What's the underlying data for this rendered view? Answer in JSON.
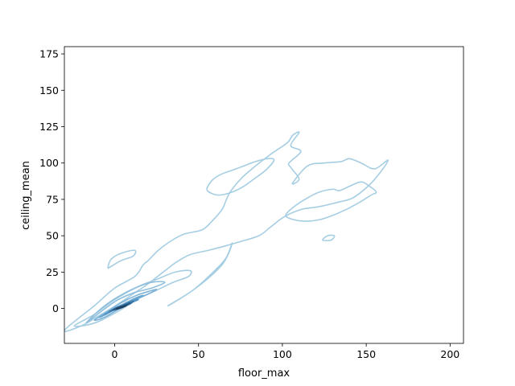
{
  "chart_data": {
    "type": "contour",
    "title": "",
    "xlabel": "floor_max",
    "ylabel": "ceiling_mean",
    "xlim": [
      -30,
      208
    ],
    "ylim": [
      -24,
      180
    ],
    "xticks": [
      0,
      50,
      100,
      150,
      200
    ],
    "yticks": [
      0,
      25,
      50,
      75,
      100,
      125,
      150,
      175
    ],
    "grid": false,
    "legend": "none",
    "colormap": "Blues",
    "colors": {
      "level_light": "#a6cee3",
      "level_mid": "#6aa7cf",
      "level_dark": "#3b78aa",
      "level_darkest": "#1f3f5f"
    },
    "contours": [
      {
        "level": 1,
        "color": "#a6cee3",
        "paths": [
          [
            [
              -30,
              -15
            ],
            [
              -12,
              2
            ],
            [
              0,
              14
            ],
            [
              12,
              22
            ],
            [
              17,
              30
            ],
            [
              20,
              33
            ],
            [
              26,
              40
            ],
            [
              33,
              46
            ],
            [
              41,
              51
            ],
            [
              52,
              54
            ],
            [
              58,
              60
            ],
            [
              64,
              68
            ],
            [
              67,
              76
            ],
            [
              70,
              82
            ],
            [
              76,
              90
            ],
            [
              84,
              98
            ],
            [
              93,
              106
            ],
            [
              103,
              114
            ],
            [
              106,
              119
            ],
            [
              110,
              121
            ],
            [
              105,
              112
            ],
            [
              111,
              108
            ],
            [
              104,
              100
            ],
            [
              105,
              97
            ],
            [
              110,
              89
            ],
            [
              106,
              86
            ],
            [
              115,
              98
            ],
            [
              125,
              100
            ],
            [
              135,
              101
            ],
            [
              140,
              103
            ],
            [
              147,
              100
            ],
            [
              155,
              96
            ],
            [
              163,
              102
            ],
            [
              158,
              93
            ],
            [
              151,
              84
            ],
            [
              142,
              76
            ],
            [
              133,
              73
            ],
            [
              122,
              70
            ],
            [
              111,
              68
            ],
            [
              101,
              63
            ],
            [
              93,
              56
            ],
            [
              86,
              50
            ],
            [
              75,
              46
            ],
            [
              66,
              43
            ],
            [
              56,
              40
            ],
            [
              45,
              37
            ],
            [
              37,
              32
            ],
            [
              30,
              26
            ],
            [
              20,
              17
            ],
            [
              11,
              10
            ],
            [
              2,
              3
            ],
            [
              -8,
              -4
            ],
            [
              -20,
              -12
            ],
            [
              -30,
              -15
            ]
          ],
          [
            [
              -4,
              28
            ],
            [
              -2,
              34
            ],
            [
              4,
              38
            ],
            [
              12,
              40
            ],
            [
              11,
              36
            ],
            [
              4,
              33
            ],
            [
              -2,
              29
            ],
            [
              -4,
              28
            ]
          ],
          [
            [
              55,
              82
            ],
            [
              58,
              88
            ],
            [
              63,
              92
            ],
            [
              70,
              95
            ],
            [
              77,
              98
            ],
            [
              84,
              101
            ],
            [
              91,
              103
            ],
            [
              95,
              102
            ],
            [
              90,
              95
            ],
            [
              83,
              89
            ],
            [
              77,
              84
            ],
            [
              70,
              80
            ],
            [
              63,
              78
            ],
            [
              58,
              79
            ],
            [
              55,
              82
            ]
          ],
          [
            [
              102,
              64
            ],
            [
              107,
              70
            ],
            [
              115,
              76
            ],
            [
              122,
              80
            ],
            [
              130,
              82
            ],
            [
              134,
              81
            ],
            [
              140,
              84
            ],
            [
              147,
              87
            ],
            [
              152,
              84
            ],
            [
              156,
              80
            ],
            [
              153,
              78
            ],
            [
              146,
              73
            ],
            [
              138,
              68
            ],
            [
              130,
              64
            ],
            [
              122,
              61
            ],
            [
              114,
              60
            ],
            [
              107,
              61
            ],
            [
              102,
              64
            ]
          ],
          [
            [
              124,
              47
            ],
            [
              127,
              50
            ],
            [
              131,
              50
            ],
            [
              129,
              47
            ],
            [
              124,
              47
            ]
          ],
          [
            [
              -24,
              -12
            ],
            [
              -12,
              -4
            ],
            [
              0,
              6
            ],
            [
              14,
              15
            ],
            [
              25,
              20
            ],
            [
              36,
              25
            ],
            [
              45,
              26
            ],
            [
              44,
              22
            ],
            [
              35,
              18
            ],
            [
              24,
              12
            ],
            [
              13,
              6
            ],
            [
              2,
              -2
            ],
            [
              -12,
              -10
            ],
            [
              -24,
              -12
            ]
          ],
          [
            [
              32,
              2
            ],
            [
              46,
              12
            ],
            [
              56,
              22
            ],
            [
              66,
              34
            ],
            [
              70,
              45
            ],
            [
              68,
              38
            ],
            [
              64,
              30
            ],
            [
              55,
              20
            ],
            [
              46,
              12
            ],
            [
              38,
              6
            ],
            [
              32,
              2
            ]
          ]
        ]
      },
      {
        "level": 2,
        "color": "#8fbedc",
        "paths": [
          [
            [
              -17,
              -10
            ],
            [
              -8,
              -2
            ],
            [
              2,
              6
            ],
            [
              12,
              11
            ],
            [
              22,
              14
            ],
            [
              30,
              18
            ],
            [
              22,
              18
            ],
            [
              12,
              14
            ],
            [
              2,
              8
            ],
            [
              -8,
              0
            ],
            [
              -17,
              -10
            ]
          ]
        ]
      },
      {
        "level": 3,
        "color": "#7fb3d8",
        "paths": [
          [
            [
              -12,
              -8
            ],
            [
              -4,
              -2
            ],
            [
              4,
              4
            ],
            [
              13,
              9
            ],
            [
              21,
              12
            ],
            [
              25,
              13
            ],
            [
              20,
              10
            ],
            [
              12,
              6
            ],
            [
              3,
              0
            ],
            [
              -6,
              -6
            ],
            [
              -12,
              -8
            ]
          ]
        ]
      },
      {
        "level": 4,
        "color": "#6aa7cf",
        "paths": [
          [
            [
              -9,
              -6
            ],
            [
              -2,
              -1
            ],
            [
              5,
              3
            ],
            [
              12,
              7
            ],
            [
              17,
              9
            ],
            [
              14,
              7
            ],
            [
              8,
              4
            ],
            [
              1,
              0
            ],
            [
              -5,
              -4
            ],
            [
              -9,
              -6
            ]
          ]
        ]
      },
      {
        "level": 5,
        "color": "#5597c6",
        "paths": [
          [
            [
              -6,
              -4
            ],
            [
              0,
              0
            ],
            [
              6,
              3
            ],
            [
              12,
              6
            ],
            [
              14,
              6
            ],
            [
              10,
              4
            ],
            [
              4,
              1
            ],
            [
              -2,
              -2
            ],
            [
              -6,
              -4
            ]
          ]
        ]
      },
      {
        "level": 6,
        "color": "#3b78aa",
        "paths": [
          [
            [
              -3,
              -2
            ],
            [
              2,
              1
            ],
            [
              7,
              3
            ],
            [
              11,
              5
            ],
            [
              9,
              3
            ],
            [
              4,
              1
            ],
            [
              -1,
              -1
            ],
            [
              -3,
              -2
            ]
          ]
        ]
      },
      {
        "level": 7,
        "color": "#2a5a86",
        "paths": [
          [
            [
              -1,
              -1
            ],
            [
              3,
              1
            ],
            [
              7,
              3
            ],
            [
              9,
              4
            ],
            [
              7,
              2
            ],
            [
              3,
              0
            ],
            [
              -1,
              -1
            ]
          ]
        ]
      },
      {
        "level": 8,
        "color": "#1f3f5f",
        "paths": [
          [
            [
              1,
              0
            ],
            [
              4,
              1
            ],
            [
              7,
              2
            ],
            [
              5,
              1
            ],
            [
              2,
              0
            ],
            [
              1,
              0
            ]
          ]
        ]
      }
    ]
  }
}
